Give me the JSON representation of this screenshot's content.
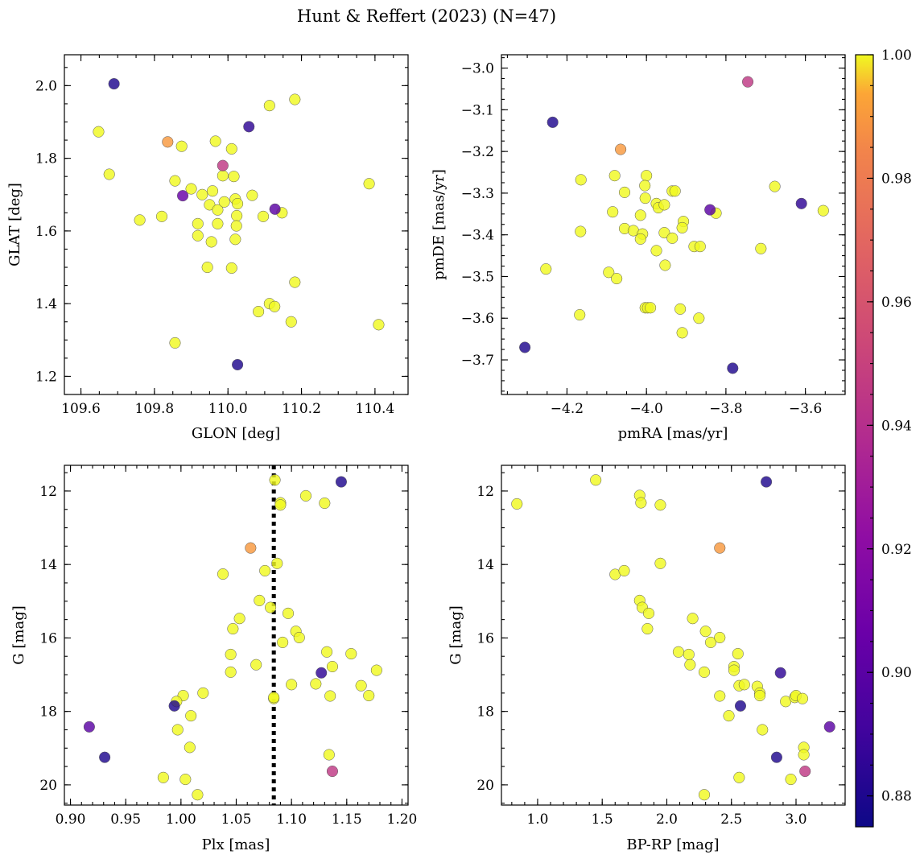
{
  "suptitle": "Hunt & Reffert (2023) (N=47)",
  "colorbar": {
    "cmap": "plasma",
    "vmin": 0.875,
    "vmax": 1.0,
    "ticks": [
      0.88,
      0.9,
      0.92,
      0.94,
      0.96,
      0.98,
      1.0
    ],
    "tick_labels": [
      "0.88",
      "0.90",
      "0.92",
      "0.94",
      "0.96",
      "0.98",
      "1.00"
    ],
    "minor_step": 0.005
  },
  "chart_data": [
    {
      "type": "scatter",
      "name": "glon-glat",
      "xlabel": "GLON [deg]",
      "ylabel": "GLAT [deg]",
      "xlim": [
        109.555,
        110.49
      ],
      "ylim": [
        1.15,
        2.085
      ],
      "invert_y": false,
      "xticks": [
        109.6,
        109.8,
        110.0,
        110.2,
        110.4
      ],
      "xtick_labels": [
        "109.6",
        "109.8",
        "110.0",
        "110.2",
        "110.4"
      ],
      "yticks": [
        1.2,
        1.4,
        1.6,
        1.8,
        2.0
      ],
      "ytick_labels": [
        "1.2",
        "1.4",
        "1.6",
        "1.8",
        "2.0"
      ],
      "xminor": 0.05,
      "yminor": 0.05,
      "points": [
        {
          "x": 109.69,
          "y": 2.005,
          "c": 0.88
        },
        {
          "x": 110.057,
          "y": 1.887,
          "c": 0.885
        },
        {
          "x": 109.877,
          "y": 1.697,
          "c": 0.905
        },
        {
          "x": 109.986,
          "y": 1.78,
          "c": 0.945
        },
        {
          "x": 110.128,
          "y": 1.66,
          "c": 0.9
        },
        {
          "x": 110.026,
          "y": 1.232,
          "c": 0.88
        },
        {
          "x": 109.648,
          "y": 1.873,
          "c": 1.0
        },
        {
          "x": 109.677,
          "y": 1.756,
          "c": 1.0
        },
        {
          "x": 109.76,
          "y": 1.63,
          "c": 1.0
        },
        {
          "x": 109.82,
          "y": 1.64,
          "c": 1.0
        },
        {
          "x": 109.836,
          "y": 1.845,
          "c": 0.99
        },
        {
          "x": 109.874,
          "y": 1.833,
          "c": 1.0
        },
        {
          "x": 109.856,
          "y": 1.738,
          "c": 1.0
        },
        {
          "x": 109.9,
          "y": 1.716,
          "c": 1.0
        },
        {
          "x": 109.918,
          "y": 1.62,
          "c": 1.0
        },
        {
          "x": 109.918,
          "y": 1.587,
          "c": 1.0
        },
        {
          "x": 109.93,
          "y": 1.7,
          "c": 1.0
        },
        {
          "x": 109.95,
          "y": 1.672,
          "c": 1.0
        },
        {
          "x": 109.955,
          "y": 1.57,
          "c": 1.0
        },
        {
          "x": 109.944,
          "y": 1.5,
          "c": 1.0
        },
        {
          "x": 109.966,
          "y": 1.847,
          "c": 1.0
        },
        {
          "x": 109.972,
          "y": 1.658,
          "c": 1.0
        },
        {
          "x": 109.972,
          "y": 1.62,
          "c": 1.0
        },
        {
          "x": 109.986,
          "y": 1.752,
          "c": 1.0
        },
        {
          "x": 109.99,
          "y": 1.68,
          "c": 1.0
        },
        {
          "x": 110.01,
          "y": 1.826,
          "c": 1.0
        },
        {
          "x": 110.016,
          "y": 1.75,
          "c": 1.0
        },
        {
          "x": 110.02,
          "y": 1.688,
          "c": 1.0
        },
        {
          "x": 110.026,
          "y": 1.675,
          "c": 1.0
        },
        {
          "x": 110.024,
          "y": 1.642,
          "c": 1.0
        },
        {
          "x": 110.023,
          "y": 1.614,
          "c": 1.0
        },
        {
          "x": 110.02,
          "y": 1.577,
          "c": 1.0
        },
        {
          "x": 110.01,
          "y": 1.498,
          "c": 1.0
        },
        {
          "x": 110.066,
          "y": 1.698,
          "c": 1.0
        },
        {
          "x": 110.096,
          "y": 1.64,
          "c": 1.0
        },
        {
          "x": 110.147,
          "y": 1.65,
          "c": 1.0
        },
        {
          "x": 110.113,
          "y": 1.945,
          "c": 1.0
        },
        {
          "x": 110.182,
          "y": 1.962,
          "c": 1.0
        },
        {
          "x": 110.113,
          "y": 1.4,
          "c": 1.0
        },
        {
          "x": 110.127,
          "y": 1.392,
          "c": 1.0
        },
        {
          "x": 110.083,
          "y": 1.378,
          "c": 1.0
        },
        {
          "x": 110.182,
          "y": 1.459,
          "c": 1.0
        },
        {
          "x": 110.172,
          "y": 1.35,
          "c": 1.0
        },
        {
          "x": 109.856,
          "y": 1.292,
          "c": 1.0
        },
        {
          "x": 110.384,
          "y": 1.73,
          "c": 1.0
        },
        {
          "x": 110.41,
          "y": 1.342,
          "c": 1.0
        },
        {
          "x": 109.958,
          "y": 1.71,
          "c": 1.0
        }
      ]
    },
    {
      "type": "scatter",
      "name": "pmra-pmde",
      "xlabel": "pmRA [mas/yr]",
      "ylabel": "pmDE [mas/yr]",
      "xlim": [
        -4.365,
        -3.5
      ],
      "ylim": [
        -3.783,
        -2.968
      ],
      "invert_y": false,
      "xticks": [
        -4.2,
        -4.0,
        -3.8,
        -3.6
      ],
      "xtick_labels": [
        "−4.2",
        "−4.0",
        "−3.8",
        "−3.6"
      ],
      "yticks": [
        -3.7,
        -3.6,
        -3.5,
        -3.4,
        -3.3,
        -3.2,
        -3.1,
        -3.0
      ],
      "ytick_labels": [
        "−3.7",
        "−3.6",
        "−3.5",
        "−3.4",
        "−3.3",
        "−3.2",
        "−3.1",
        "−3.0"
      ],
      "xminor": 0.05,
      "yminor": 0.025,
      "points": [
        {
          "x": -4.236,
          "y": -3.13,
          "c": 0.88
        },
        {
          "x": -4.306,
          "y": -3.67,
          "c": 0.88
        },
        {
          "x": -3.745,
          "y": -3.033,
          "c": 0.945
        },
        {
          "x": -3.84,
          "y": -3.34,
          "c": 0.9
        },
        {
          "x": -3.61,
          "y": -3.325,
          "c": 0.885
        },
        {
          "x": -3.783,
          "y": -3.72,
          "c": 0.88
        },
        {
          "x": -4.065,
          "y": -3.195,
          "c": 0.99
        },
        {
          "x": -4.165,
          "y": -3.268,
          "c": 1.0
        },
        {
          "x": -4.08,
          "y": -3.258,
          "c": 1.0
        },
        {
          "x": -4.0,
          "y": -3.258,
          "c": 1.0
        },
        {
          "x": -4.004,
          "y": -3.282,
          "c": 1.0
        },
        {
          "x": -4.055,
          "y": -3.298,
          "c": 1.0
        },
        {
          "x": -4.003,
          "y": -3.312,
          "c": 1.0
        },
        {
          "x": -3.975,
          "y": -3.325,
          "c": 1.0
        },
        {
          "x": -3.97,
          "y": -3.335,
          "c": 1.0
        },
        {
          "x": -3.955,
          "y": -3.328,
          "c": 1.0
        },
        {
          "x": -3.935,
          "y": -3.295,
          "c": 1.0
        },
        {
          "x": -3.928,
          "y": -3.295,
          "c": 1.0
        },
        {
          "x": -4.085,
          "y": -3.345,
          "c": 1.0
        },
        {
          "x": -4.015,
          "y": -3.353,
          "c": 1.0
        },
        {
          "x": -3.907,
          "y": -3.368,
          "c": 1.0
        },
        {
          "x": -3.91,
          "y": -3.383,
          "c": 1.0
        },
        {
          "x": -3.825,
          "y": -3.348,
          "c": 1.0
        },
        {
          "x": -4.166,
          "y": -3.392,
          "c": 1.0
        },
        {
          "x": -4.055,
          "y": -3.385,
          "c": 1.0
        },
        {
          "x": -4.033,
          "y": -3.39,
          "c": 1.0
        },
        {
          "x": -4.01,
          "y": -3.398,
          "c": 1.0
        },
        {
          "x": -4.015,
          "y": -3.41,
          "c": 1.0
        },
        {
          "x": -3.955,
          "y": -3.395,
          "c": 1.0
        },
        {
          "x": -3.935,
          "y": -3.408,
          "c": 1.0
        },
        {
          "x": -3.88,
          "y": -3.428,
          "c": 1.0
        },
        {
          "x": -3.865,
          "y": -3.428,
          "c": 1.0
        },
        {
          "x": -3.975,
          "y": -3.438,
          "c": 1.0
        },
        {
          "x": -3.712,
          "y": -3.433,
          "c": 1.0
        },
        {
          "x": -3.677,
          "y": -3.284,
          "c": 1.0
        },
        {
          "x": -3.555,
          "y": -3.342,
          "c": 1.0
        },
        {
          "x": -4.253,
          "y": -3.482,
          "c": 1.0
        },
        {
          "x": -4.095,
          "y": -3.49,
          "c": 1.0
        },
        {
          "x": -4.075,
          "y": -3.505,
          "c": 1.0
        },
        {
          "x": -3.953,
          "y": -3.473,
          "c": 1.0
        },
        {
          "x": -4.168,
          "y": -3.592,
          "c": 1.0
        },
        {
          "x": -4.003,
          "y": -3.575,
          "c": 1.0
        },
        {
          "x": -3.997,
          "y": -3.575,
          "c": 1.0
        },
        {
          "x": -3.915,
          "y": -3.578,
          "c": 1.0
        },
        {
          "x": -3.868,
          "y": -3.6,
          "c": 1.0
        },
        {
          "x": -3.91,
          "y": -3.635,
          "c": 1.0
        },
        {
          "x": -3.99,
          "y": -3.575,
          "c": 1.0
        }
      ]
    },
    {
      "type": "scatter",
      "name": "plx-g",
      "xlabel": "Plx [mas]",
      "ylabel": "G [mag]",
      "xlim": [
        0.8945,
        1.2055
      ],
      "ylim": [
        11.3,
        20.55
      ],
      "invert_y": true,
      "xticks": [
        0.9,
        0.95,
        1.0,
        1.05,
        1.1,
        1.15,
        1.2
      ],
      "xtick_labels": [
        "0.90",
        "0.95",
        "1.00",
        "1.05",
        "1.10",
        "1.15",
        "1.20"
      ],
      "yticks": [
        12,
        14,
        16,
        18,
        20
      ],
      "ytick_labels": [
        "12",
        "14",
        "16",
        "18",
        "20"
      ],
      "xminor": 0.01,
      "yminor": 0.5,
      "vline": {
        "x": 1.084,
        "style": "dotted"
      },
      "points": [
        {
          "x": 0.917,
          "y": 18.42,
          "c": 0.9
        },
        {
          "x": 0.931,
          "y": 19.25,
          "c": 0.88
        },
        {
          "x": 0.994,
          "y": 17.85,
          "c": 0.88
        },
        {
          "x": 1.127,
          "y": 16.95,
          "c": 0.885
        },
        {
          "x": 1.145,
          "y": 11.75,
          "c": 0.88
        },
        {
          "x": 1.137,
          "y": 19.63,
          "c": 0.945
        },
        {
          "x": 1.063,
          "y": 13.55,
          "c": 0.99
        },
        {
          "x": 1.085,
          "y": 11.7,
          "c": 1.0
        },
        {
          "x": 1.09,
          "y": 12.32,
          "c": 1.0
        },
        {
          "x": 1.09,
          "y": 12.38,
          "c": 1.0
        },
        {
          "x": 1.113,
          "y": 12.13,
          "c": 1.0
        },
        {
          "x": 1.13,
          "y": 12.33,
          "c": 1.0
        },
        {
          "x": 1.038,
          "y": 14.26,
          "c": 1.0
        },
        {
          "x": 1.076,
          "y": 14.17,
          "c": 1.0
        },
        {
          "x": 1.087,
          "y": 13.97,
          "c": 1.0
        },
        {
          "x": 1.071,
          "y": 14.98,
          "c": 1.0
        },
        {
          "x": 1.081,
          "y": 15.17,
          "c": 1.0
        },
        {
          "x": 1.097,
          "y": 15.33,
          "c": 1.0
        },
        {
          "x": 1.053,
          "y": 15.47,
          "c": 1.0
        },
        {
          "x": 1.047,
          "y": 15.75,
          "c": 1.0
        },
        {
          "x": 1.104,
          "y": 15.82,
          "c": 1.0
        },
        {
          "x": 1.107,
          "y": 15.99,
          "c": 1.0
        },
        {
          "x": 1.092,
          "y": 16.12,
          "c": 1.0
        },
        {
          "x": 1.045,
          "y": 16.45,
          "c": 1.0
        },
        {
          "x": 1.132,
          "y": 16.38,
          "c": 1.0
        },
        {
          "x": 1.154,
          "y": 16.43,
          "c": 1.0
        },
        {
          "x": 1.068,
          "y": 16.73,
          "c": 1.0
        },
        {
          "x": 1.137,
          "y": 16.78,
          "c": 1.0
        },
        {
          "x": 1.045,
          "y": 16.93,
          "c": 1.0
        },
        {
          "x": 1.177,
          "y": 16.88,
          "c": 1.0
        },
        {
          "x": 1.1,
          "y": 17.27,
          "c": 1.0
        },
        {
          "x": 1.122,
          "y": 17.25,
          "c": 1.0
        },
        {
          "x": 1.163,
          "y": 17.3,
          "c": 1.0
        },
        {
          "x": 1.135,
          "y": 17.58,
          "c": 1.0
        },
        {
          "x": 1.17,
          "y": 17.57,
          "c": 1.0
        },
        {
          "x": 1.084,
          "y": 17.65,
          "c": 1.0
        },
        {
          "x": 1.002,
          "y": 17.57,
          "c": 1.0
        },
        {
          "x": 1.02,
          "y": 17.5,
          "c": 1.0
        },
        {
          "x": 0.996,
          "y": 17.73,
          "c": 1.0
        },
        {
          "x": 1.009,
          "y": 18.12,
          "c": 1.0
        },
        {
          "x": 0.997,
          "y": 18.5,
          "c": 1.0
        },
        {
          "x": 1.008,
          "y": 18.98,
          "c": 1.0
        },
        {
          "x": 1.134,
          "y": 19.18,
          "c": 1.0
        },
        {
          "x": 0.984,
          "y": 19.8,
          "c": 1.0
        },
        {
          "x": 1.004,
          "y": 19.85,
          "c": 1.0
        },
        {
          "x": 1.015,
          "y": 20.27,
          "c": 1.0
        },
        {
          "x": 1.084,
          "y": 17.62,
          "c": 1.0
        }
      ]
    },
    {
      "type": "scatter",
      "name": "bprp-g",
      "xlabel": "BP-RP [mag]",
      "ylabel": "G [mag]",
      "xlim": [
        0.72,
        3.38
      ],
      "ylim": [
        11.3,
        20.55
      ],
      "invert_y": true,
      "xticks": [
        1.0,
        1.5,
        2.0,
        2.5,
        3.0
      ],
      "xtick_labels": [
        "1.0",
        "1.5",
        "2.0",
        "2.5",
        "3.0"
      ],
      "yticks": [
        12,
        14,
        16,
        18,
        20
      ],
      "ytick_labels": [
        "12",
        "14",
        "16",
        "18",
        "20"
      ],
      "xminor": 0.1,
      "yminor": 0.5,
      "points": [
        {
          "x": 2.77,
          "y": 11.75,
          "c": 0.88
        },
        {
          "x": 2.88,
          "y": 16.95,
          "c": 0.885
        },
        {
          "x": 2.57,
          "y": 17.85,
          "c": 0.88
        },
        {
          "x": 2.85,
          "y": 19.25,
          "c": 0.88
        },
        {
          "x": 3.26,
          "y": 18.42,
          "c": 0.9
        },
        {
          "x": 3.07,
          "y": 19.63,
          "c": 0.945
        },
        {
          "x": 2.41,
          "y": 13.55,
          "c": 0.99
        },
        {
          "x": 0.84,
          "y": 12.35,
          "c": 1.0
        },
        {
          "x": 1.45,
          "y": 11.7,
          "c": 1.0
        },
        {
          "x": 1.79,
          "y": 12.12,
          "c": 1.0
        },
        {
          "x": 1.8,
          "y": 12.32,
          "c": 1.0
        },
        {
          "x": 1.95,
          "y": 12.38,
          "c": 1.0
        },
        {
          "x": 1.6,
          "y": 14.27,
          "c": 1.0
        },
        {
          "x": 1.67,
          "y": 14.17,
          "c": 1.0
        },
        {
          "x": 1.95,
          "y": 13.97,
          "c": 1.0
        },
        {
          "x": 1.79,
          "y": 14.98,
          "c": 1.0
        },
        {
          "x": 1.81,
          "y": 15.17,
          "c": 1.0
        },
        {
          "x": 1.86,
          "y": 15.33,
          "c": 1.0
        },
        {
          "x": 1.85,
          "y": 15.75,
          "c": 1.0
        },
        {
          "x": 2.2,
          "y": 15.47,
          "c": 1.0
        },
        {
          "x": 2.3,
          "y": 15.82,
          "c": 1.0
        },
        {
          "x": 2.34,
          "y": 16.12,
          "c": 1.0
        },
        {
          "x": 2.41,
          "y": 15.99,
          "c": 1.0
        },
        {
          "x": 2.09,
          "y": 16.38,
          "c": 1.0
        },
        {
          "x": 2.17,
          "y": 16.45,
          "c": 1.0
        },
        {
          "x": 2.55,
          "y": 16.43,
          "c": 1.0
        },
        {
          "x": 2.18,
          "y": 16.73,
          "c": 1.0
        },
        {
          "x": 2.52,
          "y": 16.78,
          "c": 1.0
        },
        {
          "x": 2.52,
          "y": 16.88,
          "c": 1.0
        },
        {
          "x": 2.29,
          "y": 16.93,
          "c": 1.0
        },
        {
          "x": 2.56,
          "y": 17.3,
          "c": 1.0
        },
        {
          "x": 2.6,
          "y": 17.27,
          "c": 1.0
        },
        {
          "x": 2.7,
          "y": 17.32,
          "c": 1.0
        },
        {
          "x": 2.72,
          "y": 17.5,
          "c": 1.0
        },
        {
          "x": 2.72,
          "y": 17.57,
          "c": 1.0
        },
        {
          "x": 2.41,
          "y": 17.58,
          "c": 1.0
        },
        {
          "x": 2.92,
          "y": 17.73,
          "c": 1.0
        },
        {
          "x": 2.99,
          "y": 17.62,
          "c": 1.0
        },
        {
          "x": 3.0,
          "y": 17.57,
          "c": 1.0
        },
        {
          "x": 3.05,
          "y": 17.65,
          "c": 1.0
        },
        {
          "x": 2.48,
          "y": 18.12,
          "c": 1.0
        },
        {
          "x": 2.74,
          "y": 18.5,
          "c": 1.0
        },
        {
          "x": 3.06,
          "y": 18.98,
          "c": 1.0
        },
        {
          "x": 3.06,
          "y": 19.18,
          "c": 1.0
        },
        {
          "x": 2.56,
          "y": 19.8,
          "c": 1.0
        },
        {
          "x": 2.96,
          "y": 19.85,
          "c": 1.0
        },
        {
          "x": 2.29,
          "y": 20.27,
          "c": 1.0
        }
      ]
    }
  ]
}
